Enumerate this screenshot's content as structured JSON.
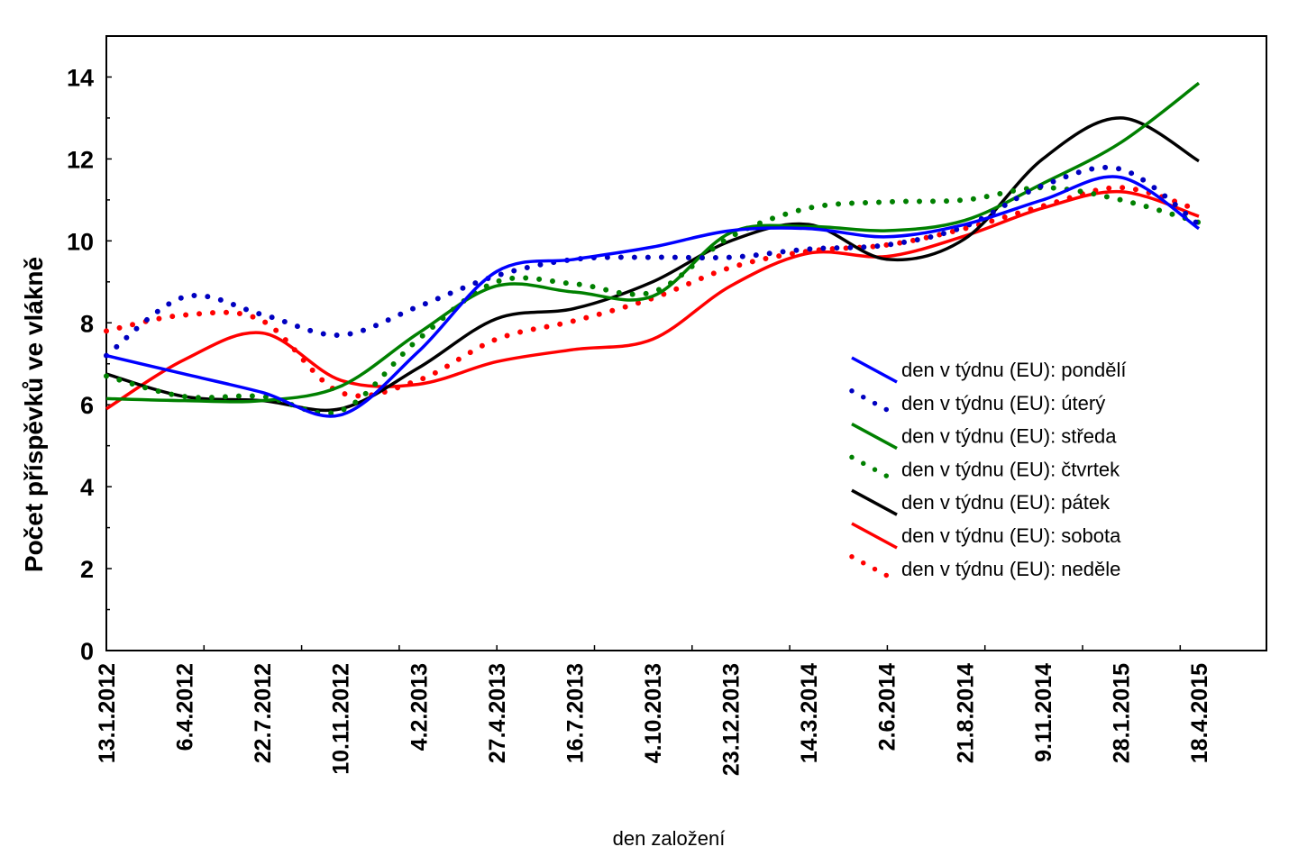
{
  "chart_data": {
    "type": "line",
    "title": "",
    "xlabel": "den založení",
    "ylabel": "Počet příspěvků ve vlákně",
    "ylim": [
      0,
      15
    ],
    "yticks": [
      0,
      2,
      4,
      6,
      8,
      10,
      12,
      14
    ],
    "grid": false,
    "legend_position": "center-right",
    "categories": [
      "13.1.2012",
      "6.4.2012",
      "22.7.2012",
      "10.11.2012",
      "4.2.2013",
      "27.4.2013",
      "16.7.2013",
      "4.10.2013",
      "23.12.2013",
      "14.3.2014",
      "2.6.2014",
      "21.8.2014",
      "9.11.2014",
      "28.1.2015",
      "18.4.2015"
    ],
    "series": [
      {
        "name": "den v týdnu (EU): pondělí",
        "color": "#0000ff",
        "style": "solid",
        "values": [
          7.2,
          6.75,
          6.3,
          5.75,
          7.3,
          9.25,
          9.55,
          9.85,
          10.25,
          10.3,
          10.1,
          10.4,
          11.0,
          11.55,
          10.3
        ]
      },
      {
        "name": "den v týdnu (EU): úterý",
        "color": "#0000c0",
        "style": "dotted",
        "values": [
          7.2,
          8.63,
          8.2,
          7.7,
          8.4,
          9.15,
          9.55,
          9.6,
          9.6,
          9.8,
          9.9,
          10.35,
          11.35,
          11.75,
          10.4
        ]
      },
      {
        "name": "den v týdnu (EU): středa",
        "color": "#008000",
        "style": "solid",
        "values": [
          6.15,
          6.1,
          6.1,
          6.45,
          7.75,
          8.9,
          8.75,
          8.65,
          10.2,
          10.35,
          10.25,
          10.5,
          11.4,
          12.4,
          13.85
        ]
      },
      {
        "name": "den v týdnu (EU): čtvrtek",
        "color": "#008000",
        "style": "dotted",
        "values": [
          6.7,
          6.2,
          6.2,
          5.85,
          7.6,
          9.0,
          8.95,
          8.75,
          10.1,
          10.8,
          10.95,
          11.0,
          11.3,
          11.0,
          10.45
        ]
      },
      {
        "name": "den v týdnu (EU): pátek",
        "color": "#000000",
        "style": "solid",
        "values": [
          6.75,
          6.2,
          6.1,
          5.9,
          6.9,
          8.1,
          8.35,
          9.0,
          10.0,
          10.4,
          9.55,
          10.05,
          12.0,
          13.0,
          11.95
        ]
      },
      {
        "name": "den v týdnu (EU): sobota",
        "color": "#ff0000",
        "style": "solid",
        "values": [
          5.9,
          7.1,
          7.75,
          6.6,
          6.5,
          7.05,
          7.35,
          7.6,
          8.9,
          9.7,
          9.62,
          10.12,
          10.8,
          11.2,
          10.6
        ]
      },
      {
        "name": "den v týdnu (EU): neděle",
        "color": "#ff0000",
        "style": "dotted",
        "values": [
          7.8,
          8.19,
          8.05,
          6.3,
          6.6,
          7.6,
          8.05,
          8.6,
          9.35,
          9.75,
          9.9,
          10.3,
          10.85,
          11.3,
          10.75
        ]
      }
    ]
  }
}
